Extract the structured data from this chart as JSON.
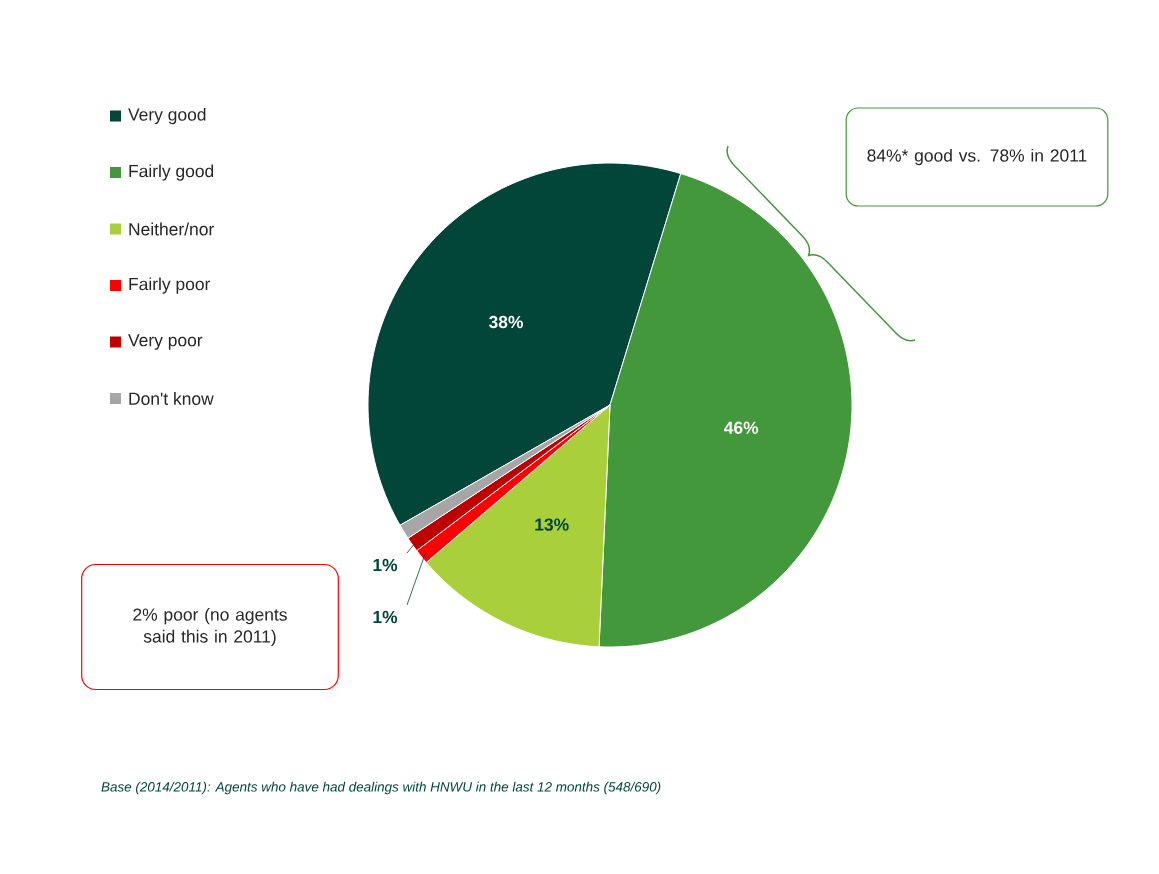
{
  "chart_data": {
    "type": "pie",
    "categories": [
      "Very good",
      "Fairly good",
      "Neither/nor",
      "Fairly poor",
      "Very poor",
      "Don't know"
    ],
    "values": [
      38,
      46,
      13,
      1,
      1,
      1
    ],
    "colors": [
      "#02463a",
      "#43983b",
      "#a9cf3a",
      "#ff0000",
      "#c00000",
      "#a6a6a6"
    ],
    "value_labels": [
      "38%",
      "46%",
      "13%",
      "1%",
      "1%",
      null
    ],
    "legend": "left",
    "annotations": [
      "84%* good vs. 78% in 2011",
      "2% poor (no agents said this in 2011)",
      "*Base (2014/2011): Agents who have had dealings with HNWU in the last 12 months (548/690)*"
    ]
  }
}
